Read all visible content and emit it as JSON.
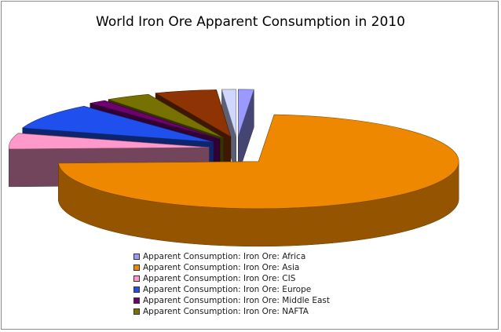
{
  "chart_data": {
    "type": "pie",
    "title": "World Iron Ore Apparent Consumption in 2010",
    "style": "3d-exploded",
    "legend_position": "bottom",
    "series": [
      {
        "name": "Apparent Consumption: Iron Ore: Africa",
        "value": 1.2,
        "color": "#9999ff"
      },
      {
        "name": "Apparent Consumption: Iron Ore: Asia",
        "value": 70.5,
        "color": "#ee8800"
      },
      {
        "name": "Apparent Consumption: Iron Ore: CIS",
        "value": 5.2,
        "color": "#ff99cc"
      },
      {
        "name": "Apparent Consumption: Iron Ore: Europe",
        "value": 8.6,
        "color": "#1f50ee"
      },
      {
        "name": "Apparent Consumption: Iron Ore: Middle East",
        "value": 1.4,
        "color": "#6e0070"
      },
      {
        "name": "Apparent Consumption: Iron Ore: NAFTA",
        "value": 3.5,
        "color": "#767100"
      },
      {
        "name": "",
        "value": 4.8,
        "color": "#8e3304"
      },
      {
        "name": "",
        "value": 1.1,
        "color": "#cfd6ff"
      }
    ]
  }
}
